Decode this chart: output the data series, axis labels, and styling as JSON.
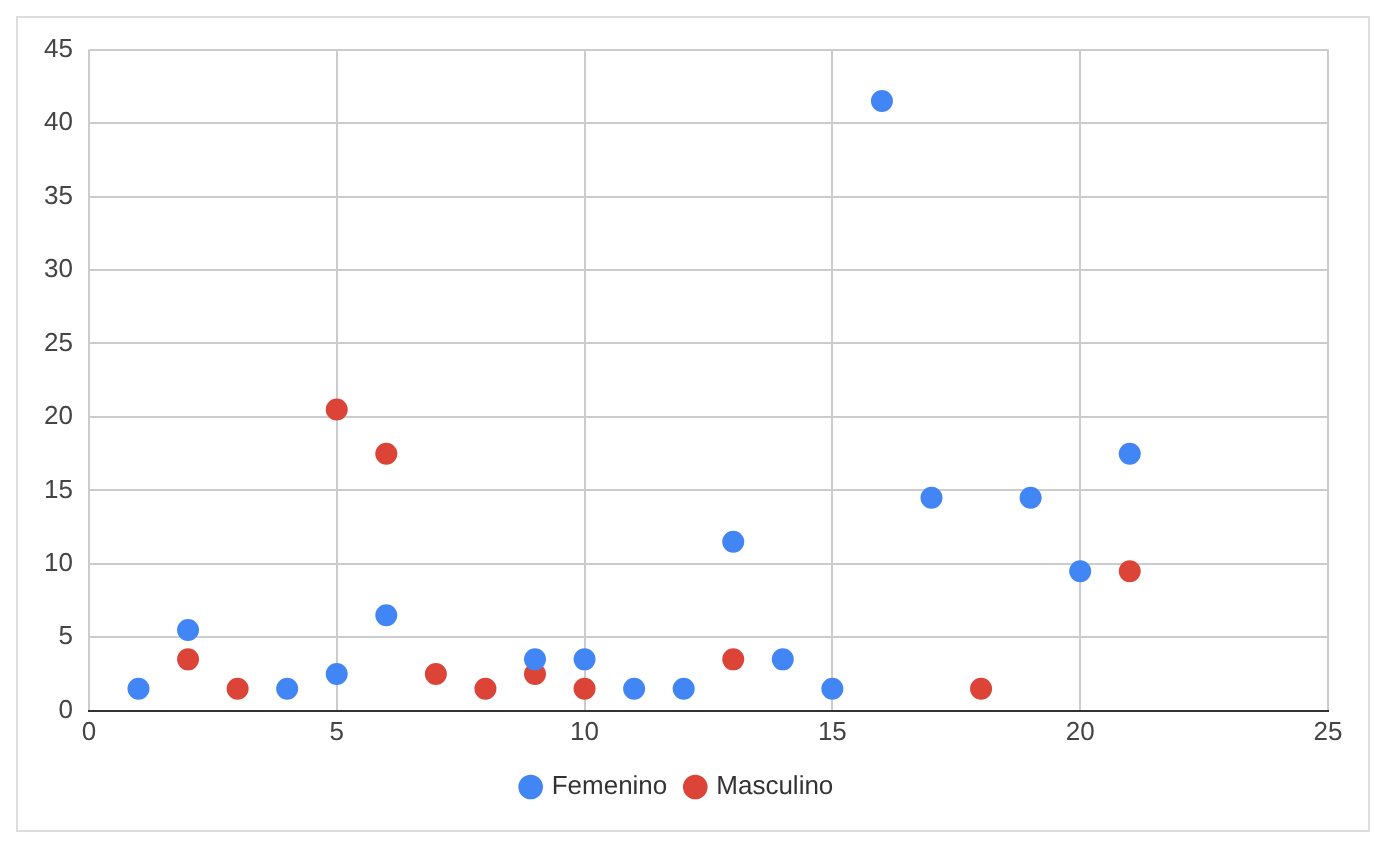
{
  "chart_data": {
    "type": "scatter",
    "xlim": [
      0,
      25
    ],
    "xticks": [
      0,
      5,
      10,
      15,
      20,
      25
    ],
    "ylim": [
      0,
      45
    ],
    "yticks": [
      0,
      5,
      10,
      15,
      20,
      25,
      30,
      35,
      40,
      45
    ],
    "grid": true,
    "legend": "bottom",
    "marker": "circle",
    "series": [
      {
        "name": "Femenino",
        "color": "#4285f4",
        "x": [
          1,
          2,
          4,
          5,
          6,
          9,
          10,
          11,
          12,
          13,
          14,
          15,
          16,
          17,
          19,
          20,
          21
        ],
        "values": [
          1.5,
          5.5,
          1.5,
          2.5,
          6.5,
          3.5,
          3.5,
          1.5,
          1.5,
          11.5,
          3.5,
          1.5,
          41.5,
          14.5,
          14.5,
          9.5,
          17.5
        ]
      },
      {
        "name": "Masculino",
        "color": "#db4437",
        "x": [
          2,
          3,
          5,
          6,
          7,
          8,
          9,
          10,
          13,
          18,
          21
        ],
        "values": [
          3.5,
          1.5,
          20.5,
          17.5,
          2.5,
          1.5,
          2.5,
          1.5,
          3.5,
          1.5,
          9.5
        ]
      }
    ]
  }
}
